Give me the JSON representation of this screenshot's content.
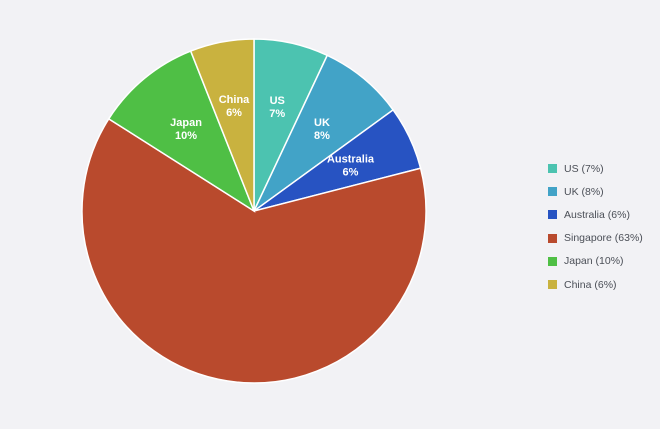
{
  "chart_data": {
    "type": "pie",
    "title": "",
    "legend_position": "right",
    "slices": [
      {
        "label": "US",
        "percent_label": "7%",
        "value": 7,
        "legend": "US (7%)",
        "color": "#4cc3b0"
      },
      {
        "label": "UK",
        "percent_label": "8%",
        "value": 8,
        "legend": "UK (8%)",
        "color": "#42a3c7"
      },
      {
        "label": "Australia",
        "percent_label": "6%",
        "value": 6,
        "legend": "Australia (6%)",
        "color": "#2753c2"
      },
      {
        "label": "Singapore",
        "percent_label": "",
        "value": 63,
        "legend": "Singapore (63%)",
        "color": "#b94a2d"
      },
      {
        "label": "Japan",
        "percent_label": "10%",
        "value": 10,
        "legend": "Japan (10%)",
        "color": "#4fbf45"
      },
      {
        "label": "China",
        "percent_label": "6%",
        "value": 6,
        "legend": "China (6%)",
        "color": "#c9b23f"
      }
    ]
  }
}
